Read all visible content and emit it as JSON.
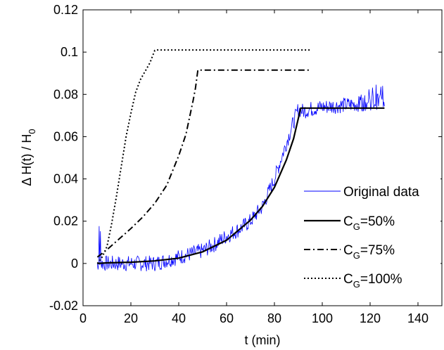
{
  "chart_data": {
    "type": "line",
    "xlabel": "t (min)",
    "ylabel_main": "Δ H(t) / H",
    "ylabel_sub": "0",
    "xlim": [
      0,
      150
    ],
    "ylim": [
      -0.02,
      0.12
    ],
    "xticks": [
      0,
      20,
      40,
      60,
      80,
      100,
      120,
      140
    ],
    "yticks": [
      -0.02,
      0,
      0.02,
      0.04,
      0.06,
      0.08,
      0.1,
      0.12
    ],
    "grid": false,
    "legend_position": "lower-right",
    "series": [
      {
        "name": "Original data",
        "legend_parts": [
          "Original data"
        ],
        "color": "#0000ff",
        "style": "solid",
        "noisy": true,
        "x": [
          6,
          10,
          20,
          30,
          40,
          50,
          55,
          60,
          65,
          70,
          75,
          80,
          85,
          88,
          90,
          92,
          95,
          100,
          110,
          120,
          126
        ],
        "y": [
          0.0,
          0.0,
          0.0,
          0.0,
          0.003,
          0.006,
          0.009,
          0.013,
          0.016,
          0.02,
          0.027,
          0.04,
          0.057,
          0.067,
          0.073,
          0.072,
          0.073,
          0.074,
          0.075,
          0.076,
          0.077
        ]
      },
      {
        "name": "C_G=50%",
        "legend_parts": [
          "C",
          "G",
          "=50%"
        ],
        "color": "#000000",
        "style": "solid",
        "x": [
          6,
          10,
          20,
          30,
          40,
          50,
          60,
          70,
          75,
          80,
          85,
          88,
          91,
          95,
          100,
          110,
          120,
          126
        ],
        "y": [
          0.0,
          0.0003,
          0.0006,
          0.0012,
          0.0025,
          0.0055,
          0.011,
          0.0205,
          0.027,
          0.036,
          0.049,
          0.059,
          0.0735,
          0.0735,
          0.0735,
          0.0735,
          0.0735,
          0.0735
        ]
      },
      {
        "name": "C_G=75%",
        "legend_parts": [
          "C",
          "G",
          "=75%"
        ],
        "color": "#000000",
        "style": "dashdot",
        "x": [
          6,
          10,
          15,
          20,
          25,
          30,
          35,
          40,
          43,
          46,
          47,
          48,
          60,
          80,
          95
        ],
        "y": [
          0.003,
          0.0065,
          0.0115,
          0.0165,
          0.022,
          0.0285,
          0.037,
          0.051,
          0.061,
          0.077,
          0.083,
          0.0915,
          0.0915,
          0.0915,
          0.0915
        ]
      },
      {
        "name": "C_G=100%",
        "legend_parts": [
          "C",
          "G",
          "=100%"
        ],
        "color": "#000000",
        "style": "dotted",
        "x": [
          6,
          8,
          10,
          12,
          14,
          16,
          18,
          20,
          22,
          24,
          26,
          28,
          29,
          30,
          31,
          50,
          70,
          95
        ],
        "y": [
          0.0,
          0.003,
          0.008,
          0.019,
          0.032,
          0.046,
          0.06,
          0.071,
          0.081,
          0.087,
          0.091,
          0.095,
          0.098,
          0.1008,
          0.101,
          0.101,
          0.101,
          0.101
        ]
      }
    ]
  }
}
